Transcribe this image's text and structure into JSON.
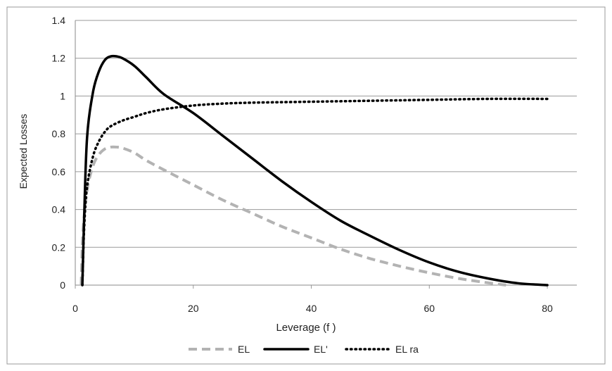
{
  "chart_data": {
    "type": "line",
    "title": "",
    "xlabel": "Leverage (f )",
    "ylabel": "Expected Losses",
    "xlim": [
      0,
      85
    ],
    "ylim": [
      0,
      1.4
    ],
    "x_ticks": [
      0,
      20,
      40,
      60,
      80
    ],
    "y_ticks": [
      0,
      0.2,
      0.4,
      0.6,
      0.8,
      1,
      1.2,
      1.4
    ],
    "x_tick_labels": [
      "0",
      "20",
      "40",
      "60",
      "80"
    ],
    "y_tick_labels": [
      "0",
      "0.2",
      "0.4",
      "0.6",
      "0.8",
      "1",
      "1.2",
      "1.4"
    ],
    "grid": "horizontal",
    "legend_position": "bottom",
    "series": [
      {
        "name": "EL",
        "color": "#b3b3b3",
        "style": "dashed",
        "points": [
          [
            1,
            0
          ],
          [
            1.3,
            0.28
          ],
          [
            2,
            0.5
          ],
          [
            3,
            0.63
          ],
          [
            4,
            0.69
          ],
          [
            5,
            0.72
          ],
          [
            6,
            0.73
          ],
          [
            7,
            0.73
          ],
          [
            8,
            0.725
          ],
          [
            10,
            0.7
          ],
          [
            12,
            0.66
          ],
          [
            15,
            0.61
          ],
          [
            20,
            0.53
          ],
          [
            25,
            0.45
          ],
          [
            30,
            0.38
          ],
          [
            35,
            0.31
          ],
          [
            40,
            0.25
          ],
          [
            45,
            0.19
          ],
          [
            50,
            0.14
          ],
          [
            55,
            0.1
          ],
          [
            60,
            0.065
          ],
          [
            65,
            0.035
          ],
          [
            70,
            0.012
          ],
          [
            73,
            0
          ]
        ]
      },
      {
        "name": "EL'",
        "color": "#000000",
        "style": "solid",
        "points": [
          [
            1.2,
            0
          ],
          [
            1.5,
            0.35
          ],
          [
            2,
            0.78
          ],
          [
            3,
            1.02
          ],
          [
            4,
            1.13
          ],
          [
            5,
            1.19
          ],
          [
            6,
            1.21
          ],
          [
            7,
            1.21
          ],
          [
            8,
            1.2
          ],
          [
            10,
            1.16
          ],
          [
            12,
            1.1
          ],
          [
            15,
            1.01
          ],
          [
            20,
            0.91
          ],
          [
            25,
            0.79
          ],
          [
            30,
            0.67
          ],
          [
            35,
            0.55
          ],
          [
            40,
            0.44
          ],
          [
            45,
            0.34
          ],
          [
            50,
            0.26
          ],
          [
            55,
            0.185
          ],
          [
            60,
            0.12
          ],
          [
            65,
            0.07
          ],
          [
            70,
            0.035
          ],
          [
            75,
            0.01
          ],
          [
            80,
            0
          ]
        ]
      },
      {
        "name": "EL ra",
        "color": "#000000",
        "style": "dotted",
        "points": [
          [
            1.2,
            0
          ],
          [
            1.5,
            0.3
          ],
          [
            2,
            0.52
          ],
          [
            3,
            0.68
          ],
          [
            4,
            0.76
          ],
          [
            5,
            0.81
          ],
          [
            6,
            0.84
          ],
          [
            8,
            0.87
          ],
          [
            10,
            0.89
          ],
          [
            12,
            0.91
          ],
          [
            15,
            0.93
          ],
          [
            20,
            0.95
          ],
          [
            25,
            0.96
          ],
          [
            30,
            0.965
          ],
          [
            40,
            0.97
          ],
          [
            50,
            0.975
          ],
          [
            60,
            0.98
          ],
          [
            70,
            0.985
          ],
          [
            80,
            0.985
          ]
        ]
      }
    ]
  }
}
